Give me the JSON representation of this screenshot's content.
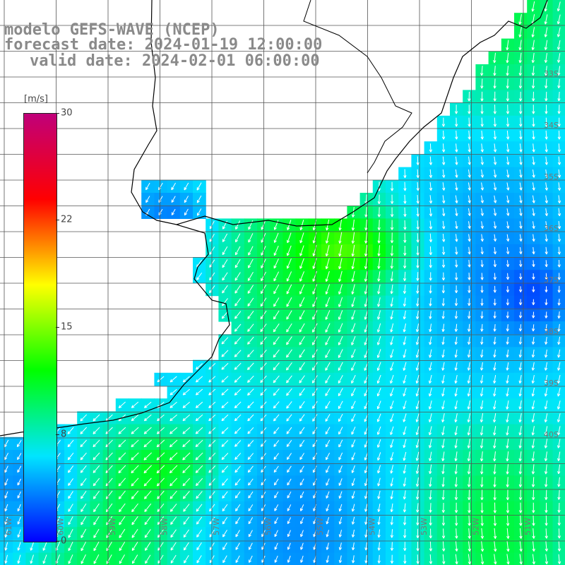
{
  "title": {
    "line1": "modelo GEFS-WAVE (NCEP)",
    "line2": "forecast date: 2024-01-19 12:00:00",
    "line3": "valid date: 2024-02-01 06:00:00"
  },
  "colorbar": {
    "unit": "[m/s]",
    "ticks": [
      "30",
      "22",
      "15",
      "8",
      "0"
    ],
    "tick_values": [
      30,
      22,
      15,
      8,
      0
    ],
    "colors": [
      "#0000ff",
      "#00e5ff",
      "#00ff00",
      "#ffff00",
      "#ff0000",
      "#c0007a"
    ]
  },
  "grid_labels": {
    "right_lat": [
      "33S",
      "34S",
      "35S",
      "36S",
      "37S",
      "38S",
      "39S",
      "40S"
    ],
    "bottom_lon": [
      "61W",
      "60W",
      "59W",
      "58W",
      "57W",
      "56W",
      "55W",
      "54W",
      "53W",
      "52W",
      "51W"
    ]
  },
  "colors": {
    "land": "#ffffff",
    "coast": "#000000",
    "grid": "#555555",
    "arrow": "#ffffff"
  }
}
